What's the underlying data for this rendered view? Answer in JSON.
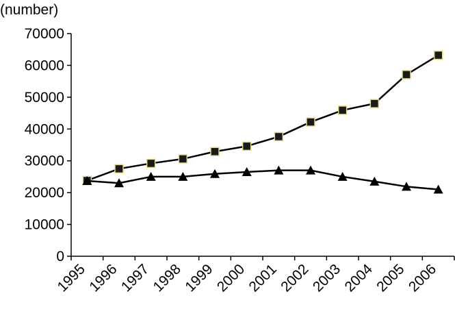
{
  "chart_data": {
    "type": "line",
    "title": "",
    "xlabel": "",
    "ylabel": "(number)",
    "ylim": [
      0,
      70000
    ],
    "yticks": [
      0,
      10000,
      20000,
      30000,
      40000,
      50000,
      60000,
      70000
    ],
    "grid": false,
    "x": [
      "1995",
      "1996",
      "1997",
      "1998",
      "1999",
      "2000",
      "2001",
      "2002",
      "2003",
      "2004",
      "2005",
      "2006"
    ],
    "series": [
      {
        "marker": "square",
        "marker_fill": "#1a1a1a",
        "marker_stroke": "#e6d98a",
        "line_color": "#000000",
        "values": [
          23800,
          27500,
          29200,
          30600,
          32900,
          34600,
          37600,
          42200,
          45900,
          48000,
          57100,
          63200
        ]
      },
      {
        "marker": "triangle",
        "marker_fill": "#000000",
        "line_color": "#000000",
        "values": [
          23700,
          23000,
          25000,
          25000,
          25900,
          26500,
          27000,
          27000,
          25000,
          23500,
          21900,
          21000
        ]
      }
    ]
  }
}
